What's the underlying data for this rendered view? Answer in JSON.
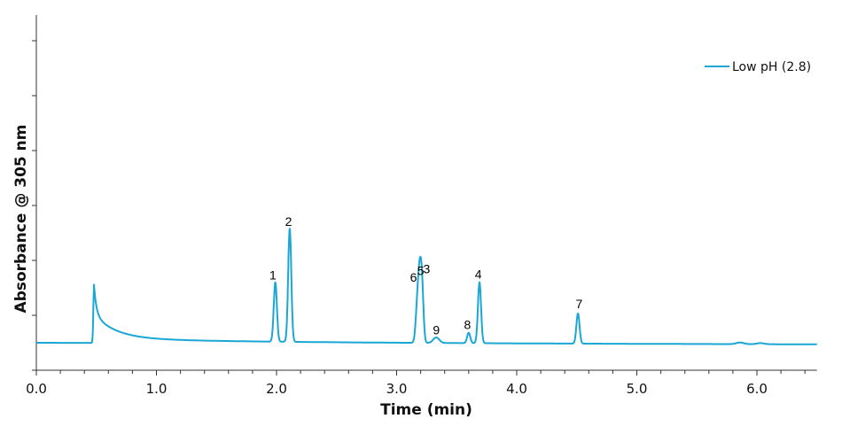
{
  "chart_data": {
    "type": "line",
    "title": "",
    "xlabel": "Time (min)",
    "ylabel": "Absorbance @ 305 nm",
    "xlim": [
      0,
      6.5
    ],
    "ylim": [
      0,
      6.5
    ],
    "x_ticks": [
      "0.0",
      "1.0",
      "2.0",
      "3.0",
      "4.0",
      "5.0",
      "6.0"
    ],
    "x_tick_values": [
      0,
      1,
      2,
      3,
      4,
      5,
      6
    ],
    "x_minor_tick_step": 0.2,
    "y_ticks": [
      0,
      1,
      2,
      3,
      4,
      5,
      6
    ],
    "y_tick_labels_shown": false,
    "grid": false,
    "legend": {
      "position": "upper right",
      "entries": [
        {
          "name": "Low pH (2.8)",
          "color": "#1aa7d6"
        }
      ]
    },
    "series": [
      {
        "name": "Low pH (2.8)",
        "color": "#1aa7d6",
        "baseline": 0.5,
        "peaks": [
          {
            "label": "",
            "time": 0.48,
            "height": 1.48
          },
          {
            "label": "1",
            "time": 1.99,
            "height": 1.58
          },
          {
            "label": "2",
            "time": 2.11,
            "height": 2.56
          },
          {
            "label": "6",
            "time": 3.17,
            "height": 1.05
          },
          {
            "label": "5",
            "time": 3.19,
            "height": 1.5
          },
          {
            "label": "3",
            "time": 3.21,
            "height": 1.55
          },
          {
            "label": "9",
            "time": 3.33,
            "height": 0.6
          },
          {
            "label": "8",
            "time": 3.6,
            "height": 0.69
          },
          {
            "label": "4",
            "time": 3.69,
            "height": 1.61
          },
          {
            "label": "7",
            "time": 4.51,
            "height": 1.05
          },
          {
            "label": "",
            "time": 5.86,
            "height": 0.53
          },
          {
            "label": "",
            "time": 6.03,
            "height": 0.52
          }
        ]
      }
    ],
    "annotations": [
      {
        "text": "1",
        "x": 1.97,
        "y": 1.62
      },
      {
        "text": "2",
        "x": 2.1,
        "y": 2.6
      },
      {
        "text": "6",
        "x": 3.14,
        "y": 1.58
      },
      {
        "text": "5",
        "x": 3.2,
        "y": 1.7
      },
      {
        "text": "3",
        "x": 3.25,
        "y": 1.73
      },
      {
        "text": "9",
        "x": 3.33,
        "y": 0.62
      },
      {
        "text": "8",
        "x": 3.59,
        "y": 0.72
      },
      {
        "text": "4",
        "x": 3.68,
        "y": 1.64
      },
      {
        "text": "7",
        "x": 4.52,
        "y": 1.1
      }
    ]
  }
}
